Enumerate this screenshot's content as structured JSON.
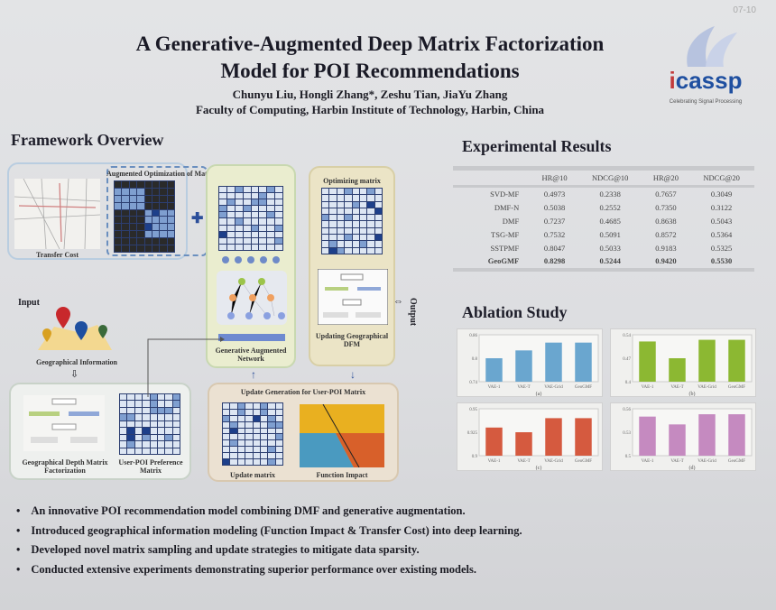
{
  "poster": {
    "title_line1": "A Generative-Augmented Deep Matrix Factorization",
    "title_line2": "Model for POI  Recommendations",
    "authors": "Chunyu Liu, Hongli Zhang*, Zeshu Tian, JiaYu Zhang",
    "affiliation": "Faculty of Computing, Harbin Institute of Technology, Harbin, China",
    "corner_mark": "07-10",
    "logo": {
      "text": "icassp",
      "tagline": "Celebrating Signal Processing"
    }
  },
  "framework": {
    "heading": "Framework Overview",
    "labels": {
      "transfer_cost": "Transfer Cost",
      "augmented_sampling": "Augmented Optimization of Matrix Sampling",
      "optimizing_matrix": "Optimizing matrix",
      "gan": "Generative Augmented Network",
      "updating_dfm": "Updating Geographical DFM",
      "output": "Output",
      "input": "Input",
      "geo_info": "Geographical Information",
      "geo_dmf": "Geographical Depth Matrix Factorization",
      "user_poi": "User-POI Preference Matrix",
      "update_generation": "Update Generation for User-POI Matrix",
      "update_matrix": "Update matrix",
      "function_impact": "Function Impact"
    }
  },
  "results": {
    "heading": "Experimental Results",
    "columns": [
      "",
      "HR@10",
      "NDCG@10",
      "HR@20",
      "NDCG@20"
    ],
    "rows": [
      [
        "SVD-MF",
        "0.4973",
        "0.2338",
        "0.7657",
        "0.3049"
      ],
      [
        "DMF-N",
        "0.5038",
        "0.2552",
        "0.7350",
        "0.3122"
      ],
      [
        "DMF",
        "0.7237",
        "0.4685",
        "0.8638",
        "0.5043"
      ],
      [
        "TSG-MF",
        "0.7532",
        "0.5091",
        "0.8572",
        "0.5364"
      ],
      [
        "SSTPMF",
        "0.8047",
        "0.5033",
        "0.9183",
        "0.5325"
      ],
      [
        "GeoGMF",
        "0.8298",
        "0.5244",
        "0.9420",
        "0.5530"
      ]
    ]
  },
  "ablation": {
    "heading": "Ablation Study"
  },
  "chart_data": [
    {
      "type": "bar",
      "caption": "(a)",
      "categories": [
        "VAE-1",
        "VAE-T",
        "VAE-Grid",
        "GeoGMF"
      ],
      "values": [
        0.8,
        0.82,
        0.84,
        0.84
      ],
      "ylim": [
        0.74,
        0.86
      ],
      "color": "#6aa6cf"
    },
    {
      "type": "bar",
      "caption": "(b)",
      "categories": [
        "VAE-1",
        "VAE-T",
        "VAE-Grid",
        "GeoGMF"
      ],
      "values": [
        0.52,
        0.47,
        0.525,
        0.525
      ],
      "ylim": [
        0.4,
        0.54
      ],
      "color": "#8cb832"
    },
    {
      "type": "bar",
      "caption": "(c)",
      "categories": [
        "VAE-1",
        "VAE-T",
        "VAE-Grid",
        "GeoGMF"
      ],
      "values": [
        0.93,
        0.925,
        0.94,
        0.94
      ],
      "ylim": [
        0.9,
        0.95
      ],
      "color": "#d55a3f"
    },
    {
      "type": "bar",
      "caption": "(d)",
      "categories": [
        "VAE-1",
        "VAE-T",
        "VAE-Grid",
        "GeoGMF"
      ],
      "values": [
        0.55,
        0.54,
        0.553,
        0.553
      ],
      "ylim": [
        0.5,
        0.56
      ],
      "color": "#c58ac0"
    }
  ],
  "bullets": [
    "An innovative POI recommendation model combining DMF and generative augmentation.",
    "Introduced geographical information modeling (Function Impact & Transfer Cost) into deep learning.",
    "Developed novel matrix sampling and update strategies to mitigate data sparsity.",
    "Conducted extensive experiments demonstrating superior performance over existing models."
  ]
}
